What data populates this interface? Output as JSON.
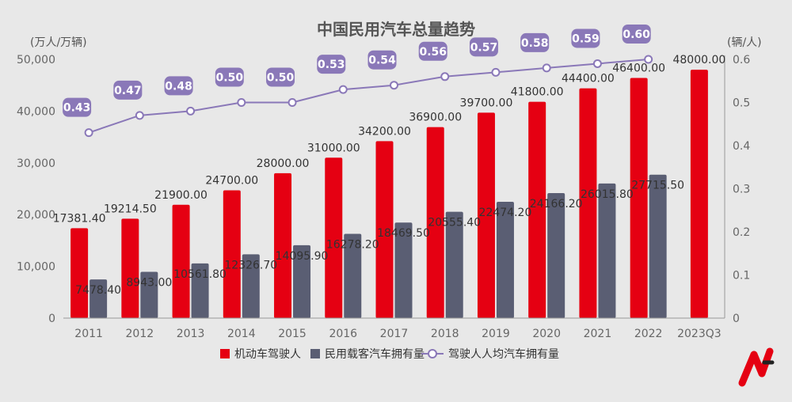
{
  "chart_data": {
    "type": "bar",
    "title": "中国民用汽车总量趋势",
    "ylabel_left": "(万人/万辆)",
    "ylabel_right": "(辆/人)",
    "ylim_left": [
      0,
      50000
    ],
    "ylim_right": [
      0,
      0.6
    ],
    "yticks_left": [
      "0",
      "10,000",
      "20,000",
      "30,000",
      "40,000",
      "50,000"
    ],
    "yticks_right": [
      "0",
      "0.1",
      "0.2",
      "0.3",
      "0.4",
      "0.5",
      "0.6"
    ],
    "categories": [
      "2011",
      "2012",
      "2013",
      "2014",
      "2015",
      "2016",
      "2017",
      "2018",
      "2019",
      "2020",
      "2021",
      "2022",
      "2023Q3"
    ],
    "series": [
      {
        "name": "机动车驾驶人",
        "type": "bar",
        "axis": "left",
        "color": "#e50012",
        "values": [
          17381.4,
          19214.5,
          21900,
          24700,
          28000,
          31000,
          34200,
          36900,
          39700,
          41800,
          44400,
          46400,
          48000
        ],
        "labels": [
          "17381.40",
          "19214.50",
          "21900.00",
          "24700.00",
          "28000.00",
          "31000.00",
          "34200.00",
          "36900.00",
          "39700.00",
          "41800.00",
          "44400.00",
          "46400.00",
          "48000.00"
        ]
      },
      {
        "name": "民用载客汽车拥有量",
        "type": "bar",
        "axis": "left",
        "color": "#5a5e73",
        "values": [
          7478.4,
          8943,
          10561.8,
          12326.7,
          14095.9,
          16278.2,
          18469.5,
          20555.4,
          22474.2,
          24166.2,
          26015.8,
          27715.5,
          null
        ],
        "labels": [
          "7478.40",
          "8943.00",
          "10561.80",
          "12326.70",
          "14095.90",
          "16278.20",
          "18469.50",
          "20555.40",
          "22474.20",
          "24166.20",
          "26015.80",
          "27715.50",
          null
        ]
      },
      {
        "name": "驾驶人人均汽车拥有量",
        "type": "line",
        "axis": "right",
        "color": "#8a78b8",
        "values": [
          0.43,
          0.47,
          0.48,
          0.5,
          0.5,
          0.53,
          0.54,
          0.56,
          0.57,
          0.58,
          0.59,
          0.6,
          null
        ],
        "labels": [
          "0.43",
          "0.47",
          "0.48",
          "0.50",
          "0.50",
          "0.53",
          "0.54",
          "0.56",
          "0.57",
          "0.58",
          "0.59",
          "0.60",
          null
        ]
      }
    ],
    "legend_position": "bottom-center",
    "grid": false
  },
  "colors": {
    "background": "#e8e8e8",
    "axis": "#999999",
    "logo_red": "#e50012"
  },
  "logo": {
    "icon": "brand-logo-icon"
  }
}
